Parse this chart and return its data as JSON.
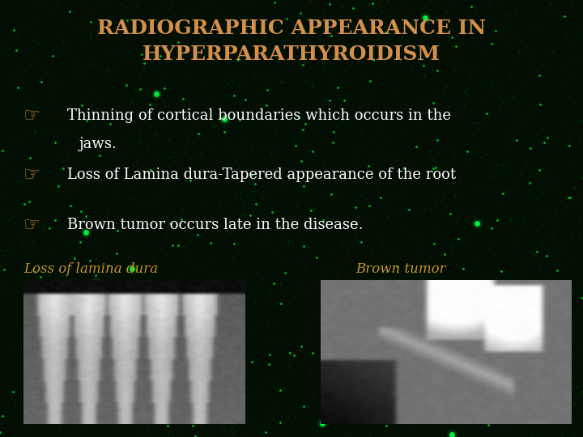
{
  "title_line1": "RADIOGRAPHIC APPEARANCE IN",
  "title_line2": "HYPERPARATHYROIDISM",
  "title_color": "#D4904A",
  "title_fontsize": 18,
  "background_color": "#020f02",
  "bullet_text_color": "#ffffff",
  "bullet_fontsize": 13,
  "bullets_line1": [
    "Thinning of cortical boundaries which occurs in the",
    "Loss of Lamina dura-Tapered appearance of the root",
    "Brown tumor occurs late in the disease."
  ],
  "bullets_line2": [
    "jaws.",
    "",
    ""
  ],
  "caption_color": "#C8922A",
  "caption_fontsize": 12,
  "caption_left": "Loss of lamina dura",
  "caption_right": "Brown tumor",
  "noise_density": 0.008
}
